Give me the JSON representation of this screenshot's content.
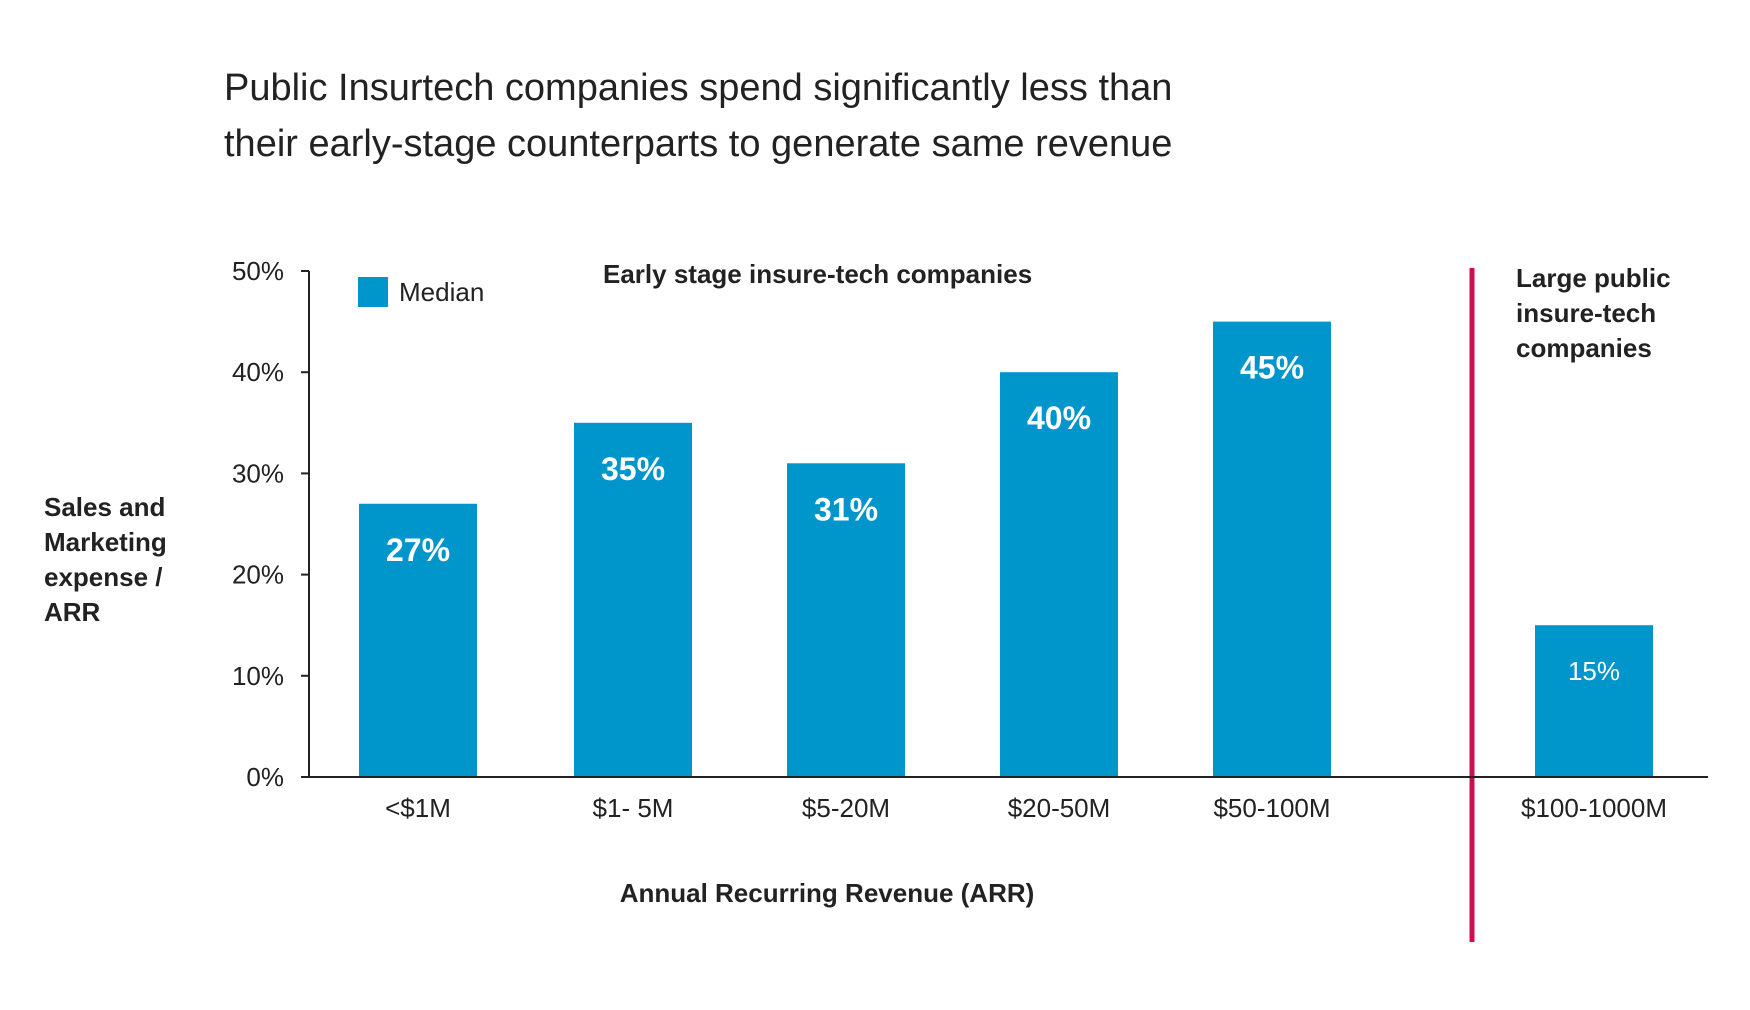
{
  "chart_data": {
    "type": "bar",
    "title": [
      "Public Insurtech companies spend significantly less than",
      "their early-stage counterparts to generate same revenue"
    ],
    "ylabel": [
      "Sales and",
      "Marketing",
      "expense /",
      "ARR"
    ],
    "xlabel": "Annual Recurring Revenue (ARR)",
    "ylim": [
      0,
      50
    ],
    "yticks": [
      0,
      10,
      20,
      30,
      40,
      50
    ],
    "ytick_labels": [
      "0%",
      "10%",
      "20%",
      "30%",
      "40%",
      "50%"
    ],
    "legend": {
      "label": "Median",
      "placement": "top-left"
    },
    "categories": [
      "<$1M",
      "$1- 5M",
      "$5-20M",
      "$20-50M",
      "$50-100M",
      "$100-1000M"
    ],
    "series": [
      {
        "name": "Median",
        "values": [
          27,
          35,
          31,
          40,
          45,
          15
        ],
        "labels": [
          "27%",
          "35%",
          "31%",
          "40%",
          "45%",
          "15%"
        ]
      }
    ],
    "groups": [
      {
        "label": [
          "Early stage insure-tech companies"
        ],
        "categories": [
          "<$1M",
          "$1- 5M",
          "$5-20M",
          "$20-50M",
          "$50-100M"
        ]
      },
      {
        "label": [
          "Large public",
          "insure-tech",
          "companies"
        ],
        "categories": [
          "$100-1000M"
        ]
      }
    ],
    "grid": false,
    "colors": {
      "bar": "#0096CC",
      "divider": "#CC0F4F",
      "axis": "#222222",
      "text": "#222222",
      "bar_label": "#ffffff"
    }
  }
}
